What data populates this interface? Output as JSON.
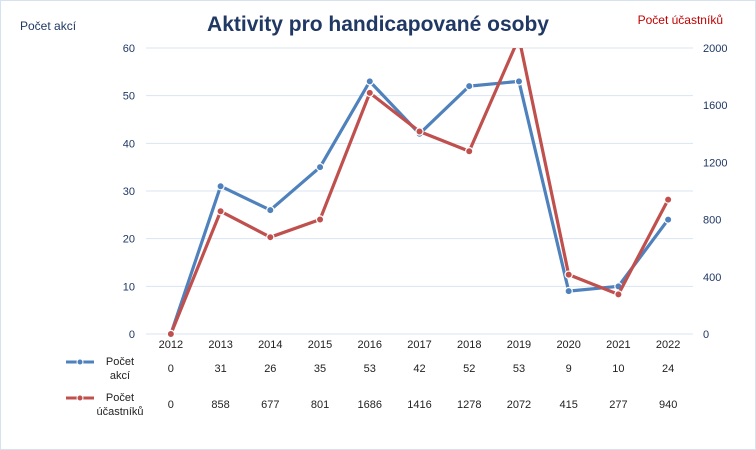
{
  "chart_data": {
    "type": "line",
    "title": "Aktivity pro handicapované  osoby",
    "ylabel_left": "Počet akcí",
    "ylabel_right": "Počet účastníků",
    "categories": [
      "2012",
      "2013",
      "2014",
      "2015",
      "2016",
      "2017",
      "2018",
      "2019",
      "2020",
      "2021",
      "2022"
    ],
    "y_left": {
      "range": [
        0,
        60
      ],
      "ticks": [
        "0",
        "10",
        "20",
        "30",
        "40",
        "50",
        "60"
      ]
    },
    "y_right": {
      "range": [
        0,
        2000
      ],
      "ticks": [
        "0",
        "400",
        "800",
        "1200",
        "1600",
        "2000"
      ]
    },
    "grid": true,
    "legend": "data-table-bottom",
    "series": [
      {
        "name": "Počet akcí",
        "name_lines": [
          "Počet",
          "akcí"
        ],
        "axis": "left",
        "color": "#4f81bd",
        "values": [
          0,
          31,
          26,
          35,
          53,
          42,
          52,
          53,
          9,
          10,
          24
        ]
      },
      {
        "name": "Počet účastníků",
        "name_lines": [
          "Počet",
          "účastníků"
        ],
        "axis": "right",
        "color": "#c0504d",
        "values": [
          0,
          858,
          677,
          801,
          1686,
          1416,
          1278,
          2072,
          415,
          277,
          940
        ]
      }
    ],
    "colors": {
      "title": "#1f3864",
      "left_label": "#1f3864",
      "right_label": "#c00000",
      "tick": "#1f3864",
      "grid": "#d9e4f2"
    }
  }
}
